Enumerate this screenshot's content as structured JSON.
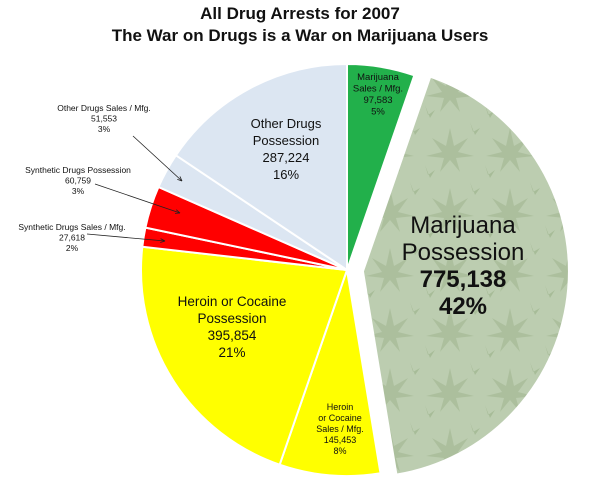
{
  "chart_data": {
    "type": "pie",
    "title": "All Drug Arrests for 2007",
    "subtitle": "The War on Drugs is a War on Marijuana Users",
    "slices": [
      {
        "label": "Marijuana Sales / Mfg.",
        "display_lines": [
          "Marijuana",
          "Sales / Mfg.",
          "97,583",
          "5%"
        ],
        "value": 97583,
        "percent": "5%",
        "color": "#22b04b"
      },
      {
        "label": "Marijuana Possession",
        "display_lines": [
          "Marijuana",
          "Possession",
          "775,138",
          "42%"
        ],
        "value": 775138,
        "percent": "42%",
        "color": "#b6c8a8"
      },
      {
        "label": "Heroin or Cocaine Sales / Mfg.",
        "display_lines": [
          "Heroin",
          "or Cocaine",
          "Sales / Mfg.",
          "145,453",
          "8%"
        ],
        "value": 145453,
        "percent": "8%",
        "color": "#ffff00"
      },
      {
        "label": "Heroin or Cocaine Possession",
        "display_lines": [
          "Heroin or Cocaine",
          "Possession",
          "395,854",
          "21%"
        ],
        "value": 395854,
        "percent": "21%",
        "color": "#ffff00"
      },
      {
        "label": "Synthetic Drugs Sales / Mfg.",
        "display_lines": [
          "Synthetic Drugs Sales / Mfg.",
          "27,618",
          "2%"
        ],
        "value": 27618,
        "percent": "2%",
        "color": "#ff0000"
      },
      {
        "label": "Synthetic Drugs Possession",
        "display_lines": [
          "Synthetic Drugs Possession",
          "60,759",
          "3%"
        ],
        "value": 60759,
        "percent": "3%",
        "color": "#ff0000"
      },
      {
        "label": "Other Drugs Sales / Mfg.",
        "display_lines": [
          "Other Drugs Sales / Mfg.",
          "51,553",
          "3%"
        ],
        "value": 51553,
        "percent": "3%",
        "color": "#dce6f2"
      },
      {
        "label": "Other Drugs Possession",
        "display_lines": [
          "Other Drugs",
          "Possession",
          "287,224",
          "16%"
        ],
        "value": 287224,
        "percent": "16%",
        "color": "#dce6f2"
      }
    ],
    "exploded_slice": "Marijuana Possession",
    "legend": "none"
  }
}
